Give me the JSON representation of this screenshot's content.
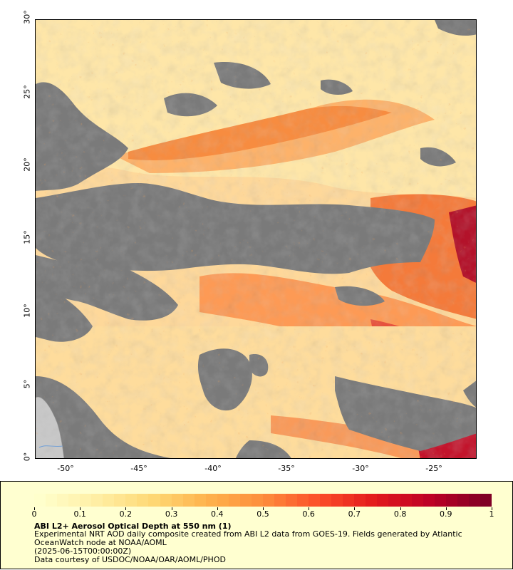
{
  "map": {
    "lat_labels": [
      "30°",
      "25°",
      "20°",
      "15°",
      "10°",
      "5°",
      "0°"
    ],
    "lon_labels": [
      "-50°",
      "-45°",
      "-40°",
      "-35°",
      "-30°",
      "-25°"
    ],
    "colors": {
      "missing": "#7a7a7a",
      "land": "#c8c8c8",
      "river": "#6f9fd8"
    }
  },
  "legend": {
    "title": "ABI L2+ Aerosol Optical Depth at 550 nm (1)",
    "description": "Experimental NRT AOD daily composite created from ABI L2 data from GOES-19. Fields generated by Atlantic",
    "description_line2": "OceanWatch node at NOAA/AOML",
    "date": "(2025-06-15T00:00:00Z)",
    "credit": "Data courtesy of USDOC/NOAA/OAR/AOML/PHOD",
    "scale_labels": [
      "0",
      "0.1",
      "0.2",
      "0.3",
      "0.4",
      "0.5",
      "0.6",
      "0.7",
      "0.8",
      "0.9",
      "1"
    ],
    "scale_colors": [
      "#ffffcc",
      "#ffefa5",
      "#fed976",
      "#feb24c",
      "#fd8d3c",
      "#fc4e2a",
      "#e31a1c",
      "#bd0026",
      "#800026"
    ]
  }
}
